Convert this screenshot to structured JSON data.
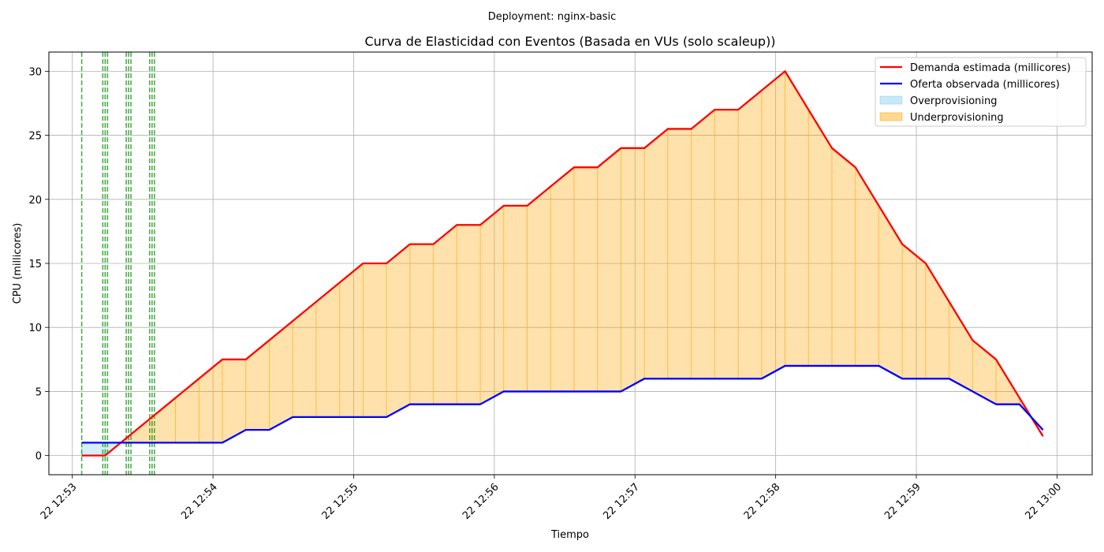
{
  "suptitle": "Deployment: nginx-basic",
  "chart_data": {
    "type": "line",
    "title": "Curva de Elasticidad con Eventos (Basada en VUs (solo scaleup))",
    "xlabel": "Tiempo",
    "ylabel": "CPU (millicores)",
    "xlim": [
      "12:52:50",
      "13:00:15"
    ],
    "ylim": [
      -1.5,
      31.5
    ],
    "grid": true,
    "legend_position": "upper-right",
    "x_ticks": [
      {
        "t": "12:53:00",
        "label": "22 12:53"
      },
      {
        "t": "12:54:00",
        "label": "22 12:54"
      },
      {
        "t": "12:55:00",
        "label": "22 12:55"
      },
      {
        "t": "12:56:00",
        "label": "22 12:56"
      },
      {
        "t": "12:57:00",
        "label": "22 12:57"
      },
      {
        "t": "12:58:00",
        "label": "22 12:58"
      },
      {
        "t": "12:59:00",
        "label": "22 12:59"
      },
      {
        "t": "13:00:00",
        "label": "22 13:00"
      }
    ],
    "y_ticks": [
      0,
      5,
      10,
      15,
      20,
      25,
      30
    ],
    "x": [
      "12:53:04",
      "12:53:14",
      "12:53:24",
      "12:53:34",
      "12:53:44",
      "12:53:54",
      "12:54:04",
      "12:54:14",
      "12:54:24",
      "12:54:34",
      "12:54:44",
      "12:54:54",
      "12:55:04",
      "12:55:14",
      "12:55:24",
      "12:55:34",
      "12:55:44",
      "12:55:54",
      "12:56:04",
      "12:56:14",
      "12:56:24",
      "12:56:34",
      "12:56:44",
      "12:56:54",
      "12:57:04",
      "12:57:14",
      "12:57:24",
      "12:57:34",
      "12:57:44",
      "12:57:54",
      "12:58:04",
      "12:58:14",
      "12:58:24",
      "12:58:34",
      "12:58:44",
      "12:58:54",
      "12:59:04",
      "12:59:14",
      "12:59:24",
      "12:59:34",
      "12:59:44",
      "12:59:54"
    ],
    "series": [
      {
        "name": "Demanda estimada (millicores)",
        "color": "#ff0000",
        "values": [
          0,
          0,
          1.5,
          3,
          4.5,
          6,
          7.5,
          7.5,
          9,
          10.5,
          12,
          13.5,
          15,
          15,
          16.5,
          16.5,
          18,
          18,
          19.5,
          19.5,
          21,
          22.5,
          22.5,
          24,
          24,
          25.5,
          25.5,
          27,
          27,
          28.5,
          30,
          27,
          24,
          22.5,
          19.5,
          16.5,
          15,
          12,
          9,
          7.5,
          4.5,
          1.5
        ]
      },
      {
        "name": "Oferta observada (millicores)",
        "color": "#0000ff",
        "values": [
          1,
          1,
          1,
          1,
          1,
          1,
          1,
          2,
          2,
          3,
          3,
          3,
          3,
          3,
          4,
          4,
          4,
          4,
          5,
          5,
          5,
          5,
          5,
          5,
          6,
          6,
          6,
          6,
          6,
          6,
          7,
          7,
          7,
          7,
          7,
          6,
          6,
          6,
          5,
          4,
          4,
          2
        ]
      }
    ],
    "fills": [
      {
        "name": "Overprovisioning",
        "color": "#87ceeb",
        "opacity": 0.35,
        "edge": "#87ceeb"
      },
      {
        "name": "Underprovisioning",
        "color": "#ffa500",
        "opacity": 0.33,
        "edge": "#ffa500"
      }
    ],
    "event_lines": {
      "color": "#2ca02c",
      "style": "dashed",
      "times": [
        "12:53:04",
        "12:53:13",
        "12:53:14",
        "12:53:15",
        "12:53:23",
        "12:53:24",
        "12:53:25",
        "12:53:33",
        "12:53:34",
        "12:53:35"
      ]
    }
  }
}
